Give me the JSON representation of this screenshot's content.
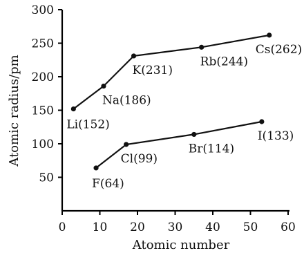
{
  "chart_data": {
    "type": "line",
    "xlabel": "Atomic number",
    "ylabel": "Atomic radius/pm",
    "xlim": [
      0,
      60
    ],
    "ylim": [
      0,
      300
    ],
    "xticks": [
      0,
      10,
      20,
      30,
      40,
      50,
      60
    ],
    "yticks": [
      50,
      100,
      150,
      200,
      250,
      300
    ],
    "grid": false,
    "series": [
      {
        "points": [
          {
            "x": 3,
            "y": 152,
            "label": "Li(152)"
          },
          {
            "x": 11,
            "y": 186,
            "label": "Na(186)"
          },
          {
            "x": 19,
            "y": 231,
            "label": "K(231)"
          },
          {
            "x": 37,
            "y": 244,
            "label": "Rb(244)"
          },
          {
            "x": 55,
            "y": 262,
            "label": "Cs(262)"
          }
        ]
      },
      {
        "points": [
          {
            "x": 9,
            "y": 64,
            "label": "F(64)"
          },
          {
            "x": 17,
            "y": 99,
            "label": "Cl(99)"
          },
          {
            "x": 35,
            "y": 114,
            "label": "Br(114)"
          },
          {
            "x": 53,
            "y": 133,
            "label": "I(133)"
          }
        ]
      }
    ]
  }
}
